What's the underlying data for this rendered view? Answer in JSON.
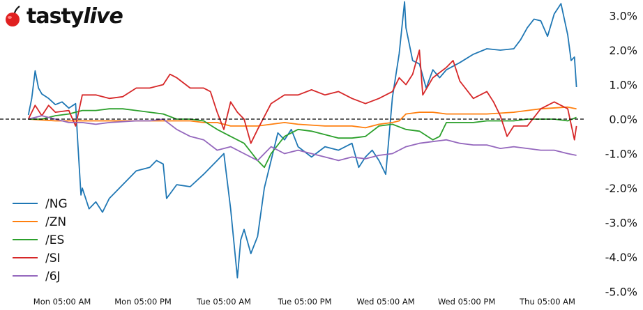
{
  "logo": {
    "text_main": "tasty",
    "text_italic": "live"
  },
  "chart_data": {
    "type": "line",
    "title": "",
    "xlabel": "",
    "ylabel": "",
    "x_units": "hours since Mon 00:00",
    "xlim": [
      0,
      81.3
    ],
    "ylim": [
      -5.1,
      3.4
    ],
    "x_ticks": [
      {
        "x": 5,
        "label": "Mon 05:00 AM"
      },
      {
        "x": 17,
        "label": "Mon 05:00 PM"
      },
      {
        "x": 29,
        "label": "Tue 05:00 AM"
      },
      {
        "x": 41,
        "label": "Tue 05:00 PM"
      },
      {
        "x": 53,
        "label": "Wed 05:00 AM"
      },
      {
        "x": 65,
        "label": "Wed 05:00 PM"
      },
      {
        "x": 77,
        "label": "Thu 05:00 AM"
      }
    ],
    "y_ticks": [
      {
        "y": 3,
        "label": "3.0%"
      },
      {
        "y": 2,
        "label": "2.0%"
      },
      {
        "y": 1,
        "label": "1.0%"
      },
      {
        "y": 0,
        "label": "0.0%"
      },
      {
        "y": -1,
        "label": "-1.0%"
      },
      {
        "y": -2,
        "label": "-2.0%"
      },
      {
        "y": -3,
        "label": "-3.0%"
      },
      {
        "y": -4,
        "label": "-4.0%"
      },
      {
        "y": -5,
        "label": "-5.0%"
      }
    ],
    "y_axis_side": "right",
    "reference_line": {
      "y": 0,
      "style": "dashed",
      "color": "#000000"
    },
    "grid": false,
    "legend_position": "lower-left",
    "series": [
      {
        "name": "/NG",
        "color": "#1f77b4",
        "points": [
          [
            0,
            0.12
          ],
          [
            0.5,
            0.6
          ],
          [
            1,
            1.4
          ],
          [
            1.5,
            0.9
          ],
          [
            2,
            0.73
          ],
          [
            3,
            0.6
          ],
          [
            4,
            0.42
          ],
          [
            5,
            0.5
          ],
          [
            6,
            0.32
          ],
          [
            7,
            0.45
          ],
          [
            7.3,
            -0.6
          ],
          [
            7.8,
            -2.2
          ],
          [
            8,
            -2.0
          ],
          [
            9,
            -2.6
          ],
          [
            10,
            -2.4
          ],
          [
            11,
            -2.7
          ],
          [
            12,
            -2.3
          ],
          [
            14,
            -1.9
          ],
          [
            16,
            -1.5
          ],
          [
            18,
            -1.4
          ],
          [
            19,
            -1.2
          ],
          [
            20,
            -1.3
          ],
          [
            20.5,
            -2.3
          ],
          [
            22,
            -1.9
          ],
          [
            24,
            -1.96
          ],
          [
            26,
            -1.6
          ],
          [
            28,
            -1.2
          ],
          [
            29,
            -1.0
          ],
          [
            30,
            -2.6
          ],
          [
            31,
            -4.6
          ],
          [
            31.5,
            -3.5
          ],
          [
            32,
            -3.2
          ],
          [
            33,
            -3.9
          ],
          [
            34,
            -3.4
          ],
          [
            35,
            -2.0
          ],
          [
            36,
            -1.2
          ],
          [
            37,
            -0.4
          ],
          [
            38,
            -0.6
          ],
          [
            39,
            -0.3
          ],
          [
            40,
            -0.8
          ],
          [
            42,
            -1.1
          ],
          [
            44,
            -0.8
          ],
          [
            46,
            -0.9
          ],
          [
            48,
            -0.7
          ],
          [
            49,
            -1.4
          ],
          [
            50,
            -1.1
          ],
          [
            51,
            -0.9
          ],
          [
            52,
            -1.2
          ],
          [
            53,
            -1.6
          ],
          [
            54,
            0.63
          ],
          [
            55,
            1.9
          ],
          [
            55.8,
            3.4
          ],
          [
            56,
            2.65
          ],
          [
            57,
            1.7
          ],
          [
            58,
            1.6
          ],
          [
            59,
            0.9
          ],
          [
            60,
            1.43
          ],
          [
            61,
            1.2
          ],
          [
            62,
            1.43
          ],
          [
            64,
            1.64
          ],
          [
            66,
            1.88
          ],
          [
            68,
            2.04
          ],
          [
            70,
            2.0
          ],
          [
            72,
            2.04
          ],
          [
            73,
            2.3
          ],
          [
            74,
            2.65
          ],
          [
            75,
            2.9
          ],
          [
            76,
            2.85
          ],
          [
            77,
            2.4
          ],
          [
            78,
            3.05
          ],
          [
            79,
            3.35
          ],
          [
            80,
            2.44
          ],
          [
            80.5,
            1.7
          ],
          [
            81,
            1.8
          ],
          [
            81.3,
            0.93
          ]
        ]
      },
      {
        "name": "/ZN",
        "color": "#ff7f0e",
        "points": [
          [
            0,
            0
          ],
          [
            4,
            -0.05
          ],
          [
            8,
            -0.05
          ],
          [
            12,
            -0.05
          ],
          [
            16,
            -0.05
          ],
          [
            20,
            -0.05
          ],
          [
            24,
            -0.05
          ],
          [
            26,
            -0.1
          ],
          [
            28,
            -0.1
          ],
          [
            30,
            -0.2
          ],
          [
            32,
            -0.2
          ],
          [
            34,
            -0.2
          ],
          [
            36,
            -0.15
          ],
          [
            38,
            -0.1
          ],
          [
            40,
            -0.15
          ],
          [
            44,
            -0.2
          ],
          [
            48,
            -0.2
          ],
          [
            50,
            -0.25
          ],
          [
            52,
            -0.15
          ],
          [
            54,
            -0.1
          ],
          [
            55,
            -0.05
          ],
          [
            56,
            0.15
          ],
          [
            58,
            0.2
          ],
          [
            60,
            0.2
          ],
          [
            62,
            0.15
          ],
          [
            64,
            0.15
          ],
          [
            68,
            0.15
          ],
          [
            72,
            0.2
          ],
          [
            74,
            0.25
          ],
          [
            76,
            0.3
          ],
          [
            80,
            0.35
          ],
          [
            81.3,
            0.3
          ]
        ]
      },
      {
        "name": "/ES",
        "color": "#2ca02c",
        "points": [
          [
            0,
            0
          ],
          [
            2,
            0
          ],
          [
            4,
            0.1
          ],
          [
            6,
            0.15
          ],
          [
            8,
            0.25
          ],
          [
            10,
            0.25
          ],
          [
            12,
            0.3
          ],
          [
            14,
            0.3
          ],
          [
            16,
            0.25
          ],
          [
            18,
            0.2
          ],
          [
            20,
            0.15
          ],
          [
            22,
            0.0
          ],
          [
            24,
            0.0
          ],
          [
            26,
            -0.05
          ],
          [
            28,
            -0.3
          ],
          [
            30,
            -0.5
          ],
          [
            32,
            -0.7
          ],
          [
            34,
            -1.2
          ],
          [
            35,
            -1.4
          ],
          [
            36,
            -1.0
          ],
          [
            38,
            -0.5
          ],
          [
            40,
            -0.3
          ],
          [
            42,
            -0.35
          ],
          [
            44,
            -0.45
          ],
          [
            46,
            -0.55
          ],
          [
            48,
            -0.55
          ],
          [
            50,
            -0.5
          ],
          [
            52,
            -0.2
          ],
          [
            54,
            -0.15
          ],
          [
            56,
            -0.3
          ],
          [
            58,
            -0.35
          ],
          [
            60,
            -0.6
          ],
          [
            61,
            -0.5
          ],
          [
            62,
            -0.1
          ],
          [
            64,
            -0.1
          ],
          [
            66,
            -0.1
          ],
          [
            68,
            -0.05
          ],
          [
            70,
            -0.05
          ],
          [
            72,
            -0.05
          ],
          [
            74,
            0
          ],
          [
            76,
            0
          ],
          [
            78,
            0
          ],
          [
            80,
            -0.05
          ],
          [
            81.3,
            0.05
          ]
        ]
      },
      {
        "name": "/SI",
        "color": "#d62728",
        "points": [
          [
            0,
            0
          ],
          [
            1,
            0.4
          ],
          [
            2,
            0.1
          ],
          [
            3,
            0.4
          ],
          [
            4,
            0.2
          ],
          [
            6,
            0.25
          ],
          [
            7,
            -0.2
          ],
          [
            8,
            0.7
          ],
          [
            10,
            0.7
          ],
          [
            12,
            0.6
          ],
          [
            14,
            0.65
          ],
          [
            16,
            0.9
          ],
          [
            18,
            0.9
          ],
          [
            20,
            1.0
          ],
          [
            21,
            1.3
          ],
          [
            22,
            1.2
          ],
          [
            24,
            0.9
          ],
          [
            26,
            0.9
          ],
          [
            27,
            0.8
          ],
          [
            28,
            0.2
          ],
          [
            29,
            -0.3
          ],
          [
            30,
            0.5
          ],
          [
            31,
            0.2
          ],
          [
            32,
            0.0
          ],
          [
            33,
            -0.7
          ],
          [
            34,
            -0.3
          ],
          [
            36,
            0.45
          ],
          [
            38,
            0.7
          ],
          [
            40,
            0.7
          ],
          [
            42,
            0.85
          ],
          [
            44,
            0.7
          ],
          [
            46,
            0.8
          ],
          [
            48,
            0.6
          ],
          [
            50,
            0.45
          ],
          [
            52,
            0.6
          ],
          [
            54,
            0.8
          ],
          [
            55,
            1.2
          ],
          [
            56,
            1.0
          ],
          [
            57,
            1.3
          ],
          [
            58,
            2.0
          ],
          [
            58.5,
            0.7
          ],
          [
            60,
            1.2
          ],
          [
            62,
            1.5
          ],
          [
            63,
            1.7
          ],
          [
            64,
            1.1
          ],
          [
            66,
            0.6
          ],
          [
            68,
            0.8
          ],
          [
            69,
            0.5
          ],
          [
            70,
            0.1
          ],
          [
            71,
            -0.5
          ],
          [
            72,
            -0.2
          ],
          [
            74,
            -0.2
          ],
          [
            76,
            0.3
          ],
          [
            78,
            0.5
          ],
          [
            80,
            0.3
          ],
          [
            81,
            -0.6
          ],
          [
            81.3,
            -0.2
          ]
        ]
      },
      {
        "name": "/6J",
        "color": "#9467bd",
        "points": [
          [
            0,
            0
          ],
          [
            2,
            0.1
          ],
          [
            4,
            0
          ],
          [
            6,
            -0.1
          ],
          [
            8,
            -0.1
          ],
          [
            10,
            -0.15
          ],
          [
            12,
            -0.1
          ],
          [
            16,
            -0.05
          ],
          [
            18,
            -0.05
          ],
          [
            20,
            0
          ],
          [
            22,
            -0.3
          ],
          [
            24,
            -0.5
          ],
          [
            26,
            -0.6
          ],
          [
            28,
            -0.9
          ],
          [
            30,
            -0.8
          ],
          [
            32,
            -1.0
          ],
          [
            34,
            -1.2
          ],
          [
            36,
            -0.8
          ],
          [
            38,
            -1.0
          ],
          [
            40,
            -0.9
          ],
          [
            42,
            -1.0
          ],
          [
            44,
            -1.1
          ],
          [
            46,
            -1.2
          ],
          [
            48,
            -1.1
          ],
          [
            50,
            -1.15
          ],
          [
            52,
            -1.05
          ],
          [
            54,
            -1.0
          ],
          [
            56,
            -0.8
          ],
          [
            58,
            -0.7
          ],
          [
            60,
            -0.65
          ],
          [
            62,
            -0.6
          ],
          [
            64,
            -0.7
          ],
          [
            66,
            -0.75
          ],
          [
            68,
            -0.75
          ],
          [
            70,
            -0.85
          ],
          [
            72,
            -0.8
          ],
          [
            74,
            -0.85
          ],
          [
            76,
            -0.9
          ],
          [
            78,
            -0.9
          ],
          [
            80,
            -1.0
          ],
          [
            81.3,
            -1.05
          ]
        ]
      }
    ]
  }
}
